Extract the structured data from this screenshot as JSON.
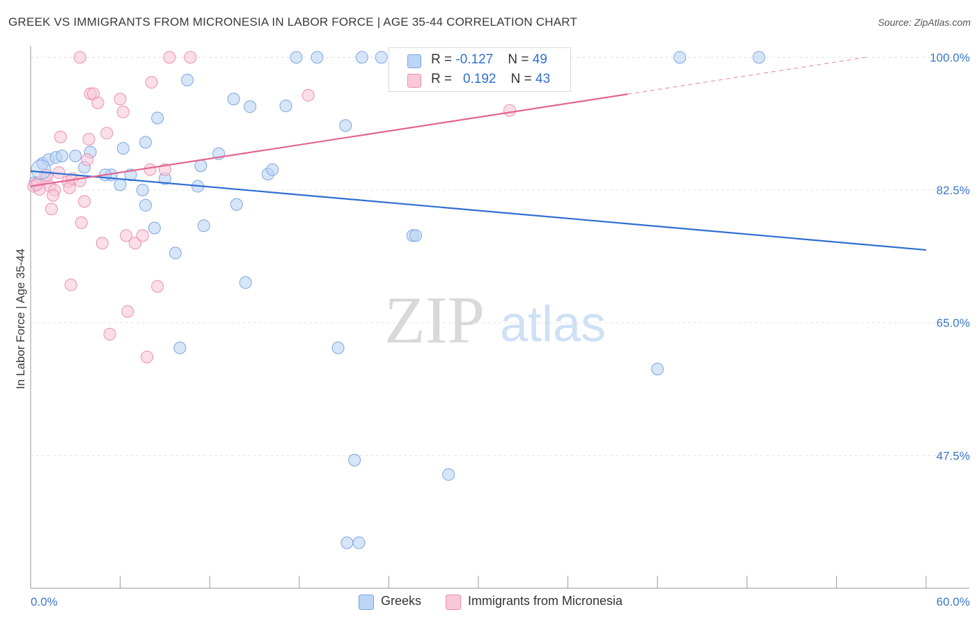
{
  "title": "GREEK VS IMMIGRANTS FROM MICRONESIA IN LABOR FORCE | AGE 35-44 CORRELATION CHART",
  "source_label": "Source:",
  "source_value": "ZipAtlas.com",
  "legend": {
    "r_label": "R =",
    "n_label": "N =",
    "rows": [
      {
        "r": "-0.127",
        "n": "49"
      },
      {
        "r": "0.192",
        "n": "43"
      }
    ]
  },
  "bottom_legend": [
    "Greeks",
    "Immigrants from Micronesia"
  ],
  "watermark": {
    "zip": "ZIP",
    "atlas": "atlas"
  },
  "colors": {
    "greek_fill": "#bcd4f5",
    "greek_stroke": "#7aa6e0",
    "greek_line": "#2f6fd0",
    "micro_fill": "#f8c8d8",
    "micro_stroke": "#e98fae",
    "micro_line": "#e2658f",
    "tick_text": "#3b78c7",
    "grid": "#e3e3e3"
  },
  "chart_data": {
    "type": "scatter",
    "title": "GREEK VS IMMIGRANTS FROM MICRONESIA IN LABOR FORCE | AGE 35-44 CORRELATION CHART",
    "xlabel": "",
    "ylabel": "In Labor Force | Age 35-44",
    "xlim": [
      0,
      60
    ],
    "ylim": [
      30,
      101.5
    ],
    "x_tick_labels": [
      "0.0%",
      "60.0%"
    ],
    "y_ticks": [
      47.5,
      65.0,
      82.5,
      100.0
    ],
    "y_tick_labels": [
      "47.5%",
      "65.0%",
      "82.5%",
      "100.0%"
    ],
    "grid": true,
    "legend_placement": "top-center",
    "series": [
      {
        "name": "Greeks",
        "r": -0.127,
        "n": 49,
        "trend": {
          "x": [
            0,
            60
          ],
          "y": [
            85.0,
            74.6
          ],
          "dashed_from": null
        },
        "points": [
          [
            0.8,
            86.0
          ],
          [
            1.2,
            86.5
          ],
          [
            1.7,
            86.8
          ],
          [
            2.1,
            87.0
          ],
          [
            3.0,
            87.0
          ],
          [
            4.0,
            87.5
          ],
          [
            3.6,
            85.5
          ],
          [
            5.4,
            84.5
          ],
          [
            6.0,
            83.2
          ],
          [
            5.0,
            84.5
          ],
          [
            6.7,
            84.5
          ],
          [
            6.2,
            88.0
          ],
          [
            7.7,
            80.5
          ],
          [
            7.5,
            82.5
          ],
          [
            7.7,
            88.8
          ],
          [
            8.5,
            92.0
          ],
          [
            8.3,
            77.5
          ],
          [
            9.0,
            84.0
          ],
          [
            9.7,
            74.2
          ],
          [
            10.5,
            97.0
          ],
          [
            11.2,
            83.0
          ],
          [
            11.4,
            85.7
          ],
          [
            11.6,
            77.8
          ],
          [
            12.6,
            87.3
          ],
          [
            13.6,
            94.5
          ],
          [
            13.8,
            80.6
          ],
          [
            14.4,
            70.3
          ],
          [
            14.7,
            93.5
          ],
          [
            15.9,
            84.6
          ],
          [
            16.2,
            85.2
          ],
          [
            17.1,
            93.6
          ],
          [
            17.8,
            100.0
          ],
          [
            19.2,
            100.0
          ],
          [
            21.1,
            91.0
          ],
          [
            22.2,
            100.0
          ],
          [
            23.5,
            100.0
          ],
          [
            24.8,
            100.0
          ],
          [
            25.6,
            76.5
          ],
          [
            25.8,
            76.5
          ],
          [
            20.6,
            61.7
          ],
          [
            10.0,
            61.7
          ],
          [
            21.7,
            46.9
          ],
          [
            21.2,
            36.0
          ],
          [
            22.0,
            36.0
          ],
          [
            28.0,
            45.0
          ],
          [
            42.0,
            58.9
          ],
          [
            43.5,
            100.0
          ],
          [
            48.8,
            100.0
          ],
          [
            0.3,
            83.5
          ]
        ]
      },
      {
        "name": "Immigrants from Micronesia",
        "r": 0.192,
        "n": 43,
        "trend": {
          "x": [
            0,
            56
          ],
          "y": [
            83.0,
            100.0
          ],
          "dashed_from": 40
        },
        "points": [
          [
            0.5,
            83.5
          ],
          [
            1.0,
            84.5
          ],
          [
            1.3,
            83.0
          ],
          [
            1.6,
            82.5
          ],
          [
            1.9,
            84.8
          ],
          [
            1.4,
            80.0
          ],
          [
            1.5,
            81.8
          ],
          [
            2.0,
            89.5
          ],
          [
            2.5,
            83.6
          ],
          [
            2.6,
            82.8
          ],
          [
            2.8,
            84.0
          ],
          [
            2.7,
            70.0
          ],
          [
            3.3,
            83.7
          ],
          [
            3.4,
            78.2
          ],
          [
            3.6,
            81.0
          ],
          [
            3.8,
            86.5
          ],
          [
            3.9,
            89.2
          ],
          [
            4.0,
            95.2
          ],
          [
            4.2,
            95.2
          ],
          [
            4.5,
            94.0
          ],
          [
            4.8,
            75.5
          ],
          [
            5.1,
            90.0
          ],
          [
            5.3,
            63.5
          ],
          [
            6.0,
            94.5
          ],
          [
            6.2,
            92.8
          ],
          [
            6.4,
            76.5
          ],
          [
            6.5,
            66.5
          ],
          [
            7.0,
            75.5
          ],
          [
            7.5,
            76.5
          ],
          [
            7.8,
            60.5
          ],
          [
            8.0,
            85.2
          ],
          [
            8.1,
            96.7
          ],
          [
            8.5,
            69.8
          ],
          [
            9.0,
            85.2
          ],
          [
            9.3,
            100.0
          ],
          [
            10.7,
            100.0
          ],
          [
            3.3,
            100.0
          ],
          [
            18.6,
            95.0
          ],
          [
            32.1,
            93.0
          ],
          [
            0.2,
            83.0
          ],
          [
            0.6,
            82.6
          ],
          [
            0.4,
            83.2
          ],
          [
            1.1,
            84.4
          ]
        ]
      }
    ]
  }
}
